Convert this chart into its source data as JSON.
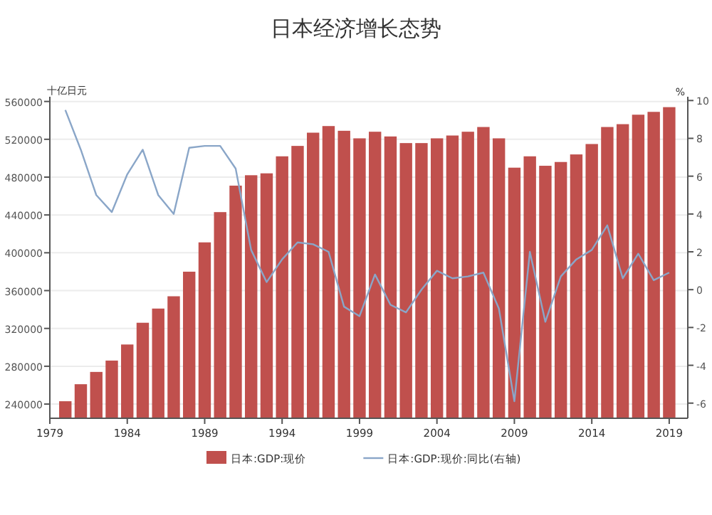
{
  "chart_data": {
    "type": "bar",
    "title": "日本经济增长态势",
    "ylabel": "十亿日元",
    "y2label": "%",
    "x": [
      1980,
      1981,
      1982,
      1983,
      1984,
      1985,
      1986,
      1987,
      1988,
      1989,
      1990,
      1991,
      1992,
      1993,
      1994,
      1995,
      1996,
      1997,
      1998,
      1999,
      2000,
      2001,
      2002,
      2003,
      2004,
      2005,
      2006,
      2007,
      2008,
      2009,
      2010,
      2011,
      2012,
      2013,
      2014,
      2015,
      2016,
      2017,
      2018,
      2019
    ],
    "series": [
      {
        "name": "日本:GDP:现价",
        "color": "#c0504d",
        "values": [
          243000,
          261000,
          274000,
          286000,
          303000,
          326000,
          341000,
          354000,
          380000,
          411000,
          443000,
          471000,
          482000,
          484000,
          502000,
          513000,
          527000,
          534000,
          529000,
          521000,
          528000,
          523000,
          516000,
          516000,
          521000,
          524000,
          528000,
          533000,
          521000,
          490000,
          502000,
          492000,
          496000,
          504000,
          515000,
          533000,
          536000,
          546000,
          549000,
          554000
        ]
      },
      {
        "name": "日本:GDP:现价:同比(右轴)",
        "type": "line",
        "axis": "y2",
        "color": "#8aa6c8",
        "values": [
          9.5,
          7.4,
          5.0,
          4.1,
          6.1,
          7.4,
          5.0,
          4.0,
          7.5,
          7.6,
          7.6,
          6.4,
          2.1,
          0.4,
          1.6,
          2.5,
          2.4,
          2.0,
          -0.9,
          -1.4,
          0.8,
          -0.8,
          -1.2,
          0.0,
          1.0,
          0.6,
          0.7,
          0.9,
          -1.0,
          -5.9,
          2.0,
          -1.7,
          0.7,
          1.6,
          2.1,
          3.4,
          0.6,
          1.9,
          0.5,
          0.9
        ]
      }
    ],
    "xlim": [
      1979,
      2020.2
    ],
    "xticks": [
      1979,
      1984,
      1989,
      1994,
      1999,
      2004,
      2009,
      2014,
      2019
    ],
    "ylim": [
      225000,
      565000
    ],
    "yticks": [
      240000,
      280000,
      320000,
      360000,
      400000,
      440000,
      480000,
      520000,
      560000
    ],
    "y2lim": [
      -6.8,
      10.2
    ],
    "y2ticks": [
      -6,
      -4,
      -2,
      0,
      2,
      4,
      6,
      8,
      10
    ],
    "grid": "y",
    "legend": "bottom"
  }
}
